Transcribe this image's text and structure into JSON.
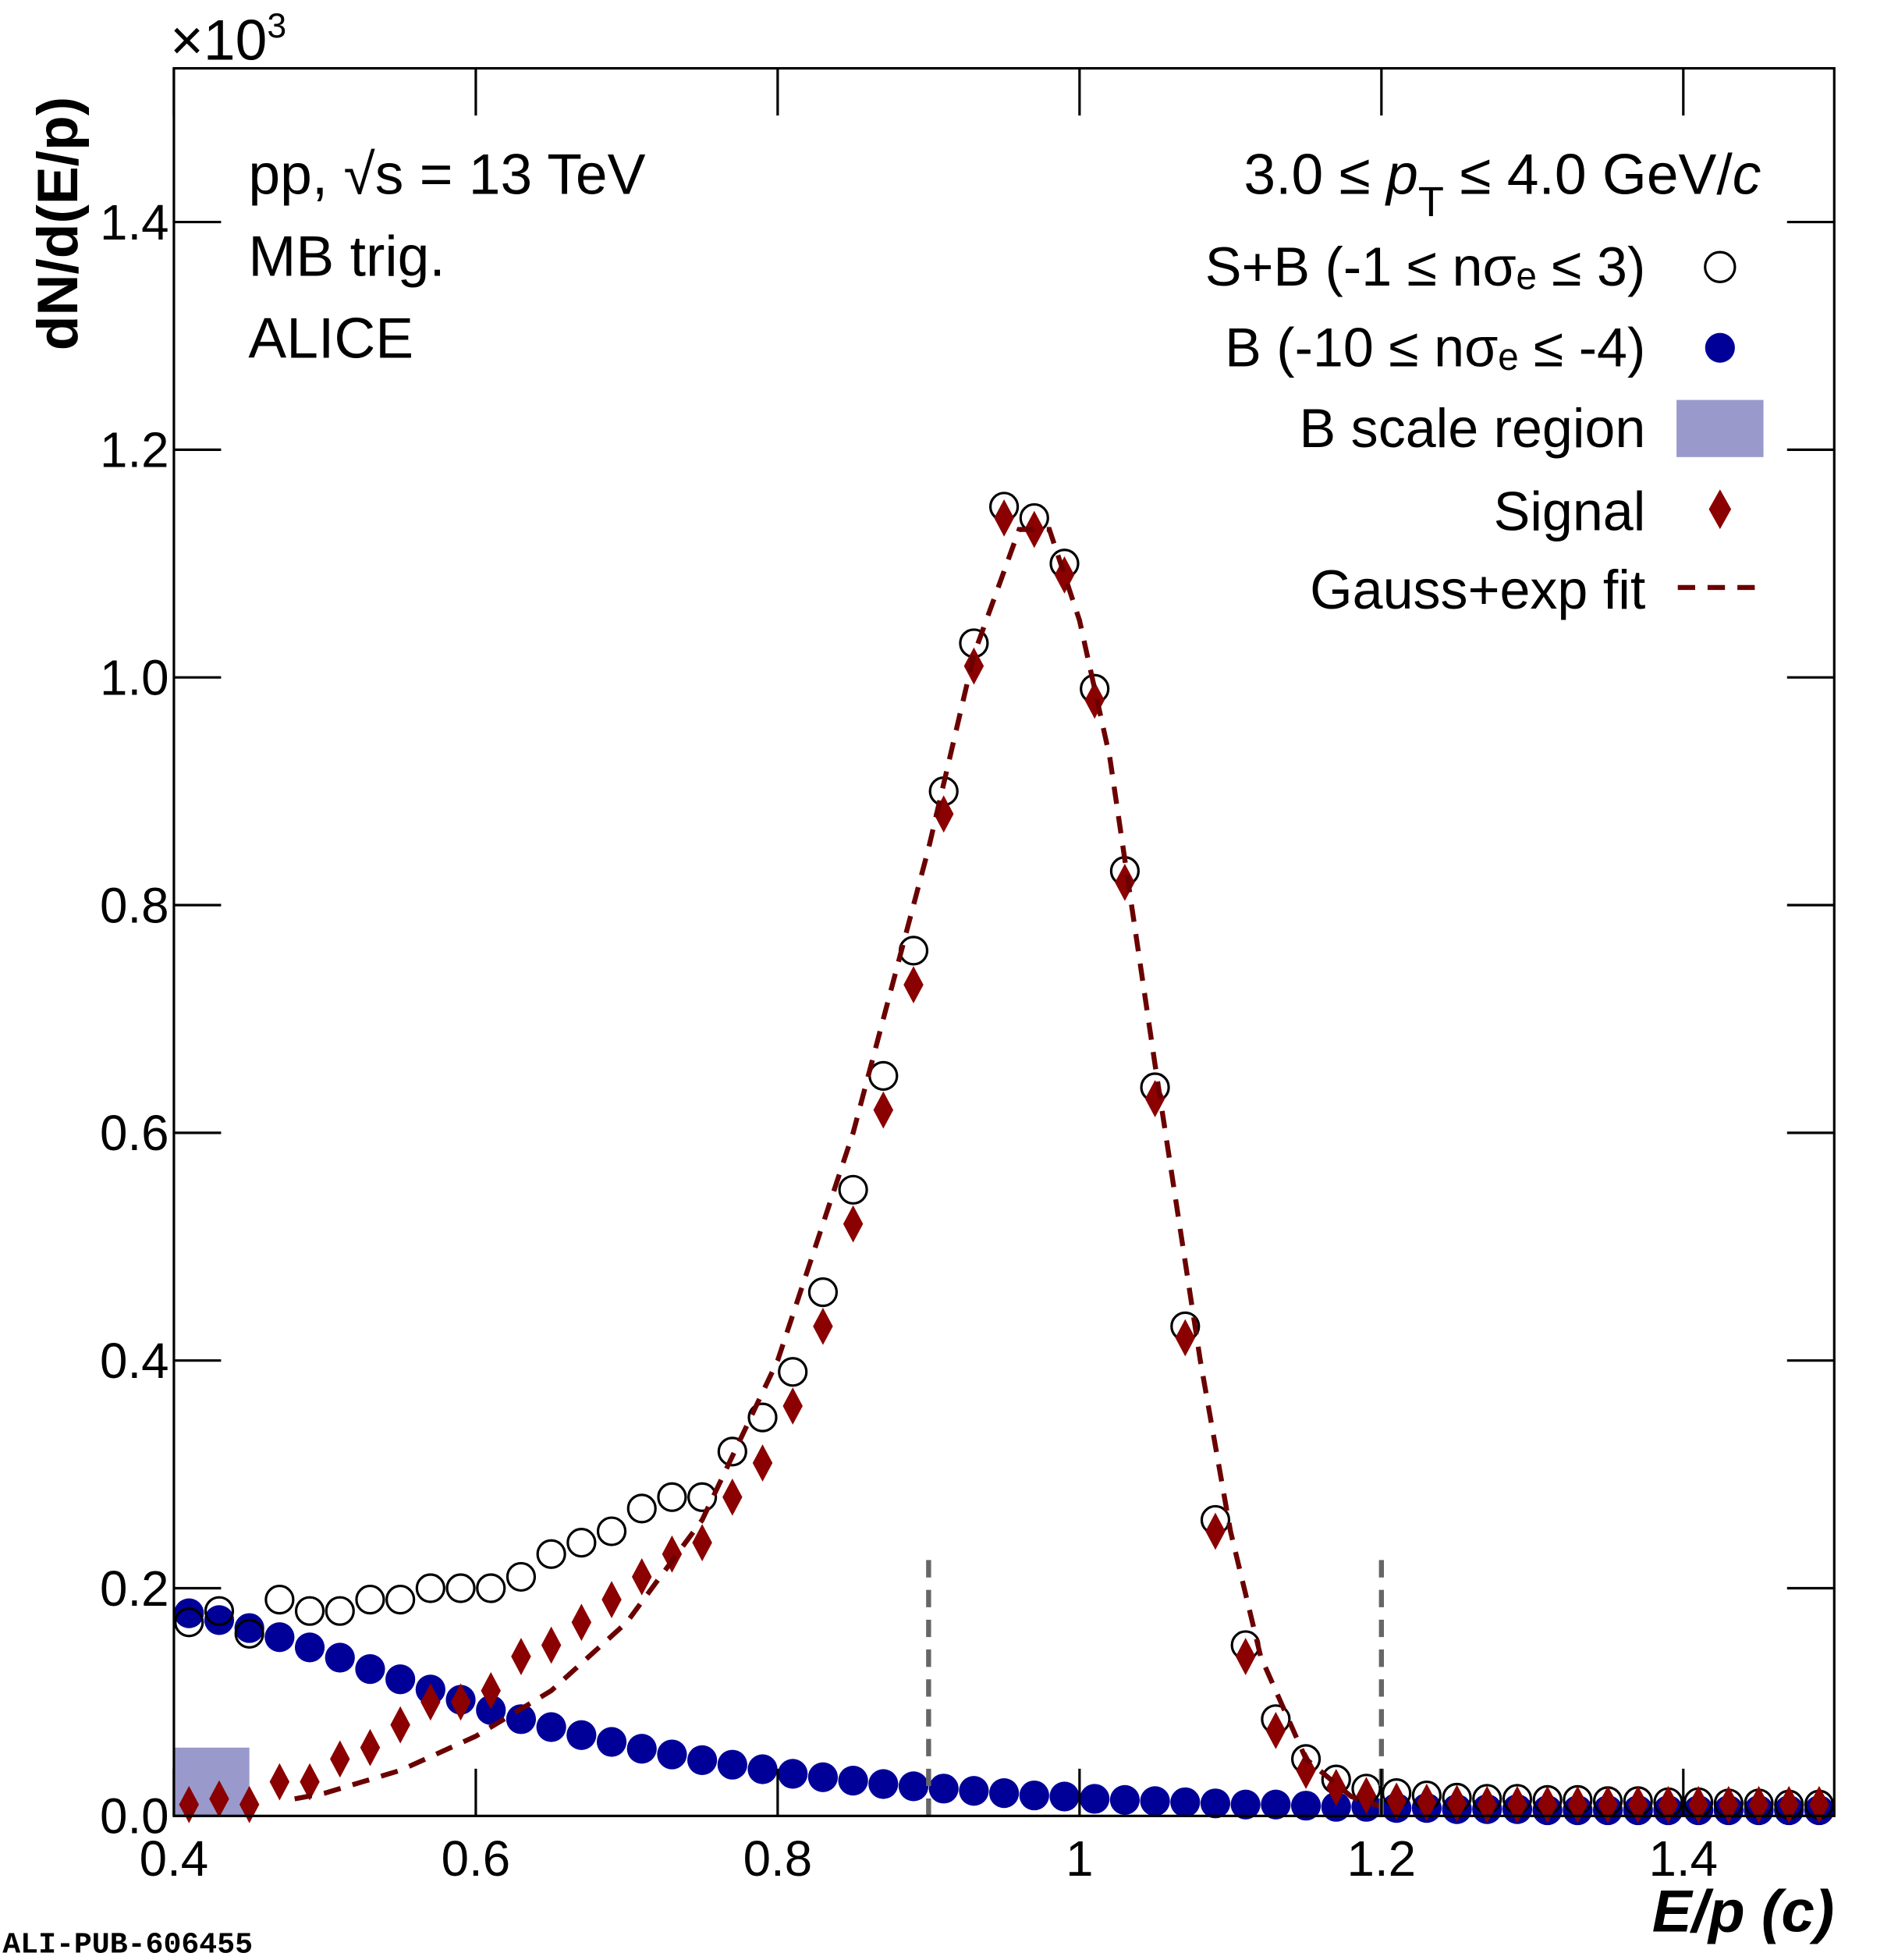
{
  "chart_data": {
    "type": "scatter",
    "y_multiplier": "×10",
    "y_multiplier_exp": "3",
    "y_label": "dN/d(E/p)",
    "x_label": "E/p (c)",
    "annotations": [
      "pp, √s = 13 TeV",
      "MB trig.",
      "ALICE"
    ],
    "pt_label": [
      "3.0 ≤ ",
      "p",
      "T",
      " ≤ 4.0 GeV/",
      "c"
    ],
    "watermark": "ALI-PUB-606455",
    "xlim": [
      0.4,
      1.5
    ],
    "ylim": [
      0,
      1.535
    ],
    "xticks": [
      0.4,
      0.6,
      0.8,
      1,
      1.2,
      1.4
    ],
    "yticks": [
      {
        "value": 0,
        "label": "0.0"
      },
      0.2,
      0.4,
      0.6,
      0.8,
      {
        "value": 1,
        "label": "1.0"
      },
      1.2,
      1.4
    ],
    "x": [
      0.41,
      0.43,
      0.45,
      0.47,
      0.49,
      0.51,
      0.53,
      0.55,
      0.57,
      0.59,
      0.61,
      0.63,
      0.65,
      0.67,
      0.69,
      0.71,
      0.73,
      0.75,
      0.77,
      0.79,
      0.81,
      0.83,
      0.85,
      0.87,
      0.89,
      0.91,
      0.93,
      0.95,
      0.97,
      0.99,
      1.01,
      1.03,
      1.05,
      1.07,
      1.09,
      1.11,
      1.13,
      1.15,
      1.17,
      1.19,
      1.21,
      1.23,
      1.25,
      1.27,
      1.29,
      1.31,
      1.33,
      1.35,
      1.37,
      1.39,
      1.41,
      1.43,
      1.45,
      1.47,
      1.49
    ],
    "series": [
      {
        "name": "S+B (-1 ≤ nσₑ ≤  3)",
        "marker": "open-circle",
        "color": "#000000",
        "values": [
          0.17,
          0.18,
          0.16,
          0.19,
          0.18,
          0.18,
          0.19,
          0.19,
          0.2,
          0.2,
          0.2,
          0.21,
          0.23,
          0.24,
          0.25,
          0.27,
          0.28,
          0.28,
          0.32,
          0.35,
          0.39,
          0.46,
          0.55,
          0.65,
          0.76,
          0.9,
          1.03,
          1.15,
          1.14,
          1.1,
          0.99,
          0.83,
          0.64,
          0.43,
          0.26,
          0.15,
          0.085,
          0.05,
          0.032,
          0.024,
          0.02,
          0.018,
          0.016,
          0.015,
          0.015,
          0.014,
          0.014,
          0.013,
          0.013,
          0.012,
          0.012,
          0.011,
          0.011,
          0.01,
          0.01
        ]
      },
      {
        "name": "B (-10 ≤ nσₑ ≤ -4)",
        "marker": "circle",
        "color": "#000099",
        "values": [
          0.178,
          0.172,
          0.165,
          0.157,
          0.148,
          0.139,
          0.129,
          0.12,
          0.111,
          0.102,
          0.093,
          0.085,
          0.078,
          0.071,
          0.065,
          0.059,
          0.054,
          0.049,
          0.045,
          0.041,
          0.037,
          0.034,
          0.031,
          0.028,
          0.026,
          0.024,
          0.022,
          0.02,
          0.018,
          0.017,
          0.015,
          0.014,
          0.013,
          0.012,
          0.011,
          0.01,
          0.01,
          0.009,
          0.008,
          0.008,
          0.007,
          0.007,
          0.006,
          0.006,
          0.006,
          0.005,
          0.005,
          0.005,
          0.005,
          0.005,
          0.005,
          0.005,
          0.005,
          0.005,
          0.005
        ]
      },
      {
        "name": "Signal",
        "marker": "diamond",
        "color": "#8b0000",
        "values": [
          0.01,
          0.015,
          0.01,
          0.03,
          0.03,
          0.05,
          0.06,
          0.08,
          0.1,
          0.1,
          0.11,
          0.14,
          0.15,
          0.17,
          0.19,
          0.21,
          0.23,
          0.24,
          0.28,
          0.31,
          0.36,
          0.43,
          0.52,
          0.62,
          0.73,
          0.88,
          1.01,
          1.14,
          1.13,
          1.09,
          0.98,
          0.82,
          0.63,
          0.42,
          0.25,
          0.14,
          0.075,
          0.04,
          0.025,
          0.018,
          0.013,
          0.012,
          0.011,
          0.01,
          0.01,
          0.01,
          0.01,
          0.01,
          0.01,
          0.01,
          0.01,
          0.01,
          0.01,
          0.01,
          0.01
        ]
      }
    ],
    "fit": {
      "name": "Gauss+exp fit",
      "color": "#6b0000",
      "x": [
        0.48,
        0.5,
        0.55,
        0.6,
        0.65,
        0.7,
        0.75,
        0.8,
        0.85,
        0.9,
        0.93,
        0.96,
        0.98,
        1.0,
        1.02,
        1.05,
        1.08,
        1.1,
        1.12,
        1.15,
        1.18,
        1.2
      ],
      "values": [
        0.015,
        0.02,
        0.04,
        0.07,
        0.11,
        0.17,
        0.26,
        0.4,
        0.6,
        0.85,
        1.02,
        1.13,
        1.13,
        1.05,
        0.93,
        0.66,
        0.4,
        0.25,
        0.14,
        0.05,
        0.017,
        0.008
      ]
    },
    "scale_region": {
      "name": "B scale region",
      "color": "#9999cc",
      "x": [
        0.4,
        0.45
      ],
      "y": [
        0,
        0.06
      ]
    },
    "integration_lines": {
      "x": [
        0.9,
        1.2
      ],
      "top": 0.23,
      "color": "#666666"
    }
  }
}
